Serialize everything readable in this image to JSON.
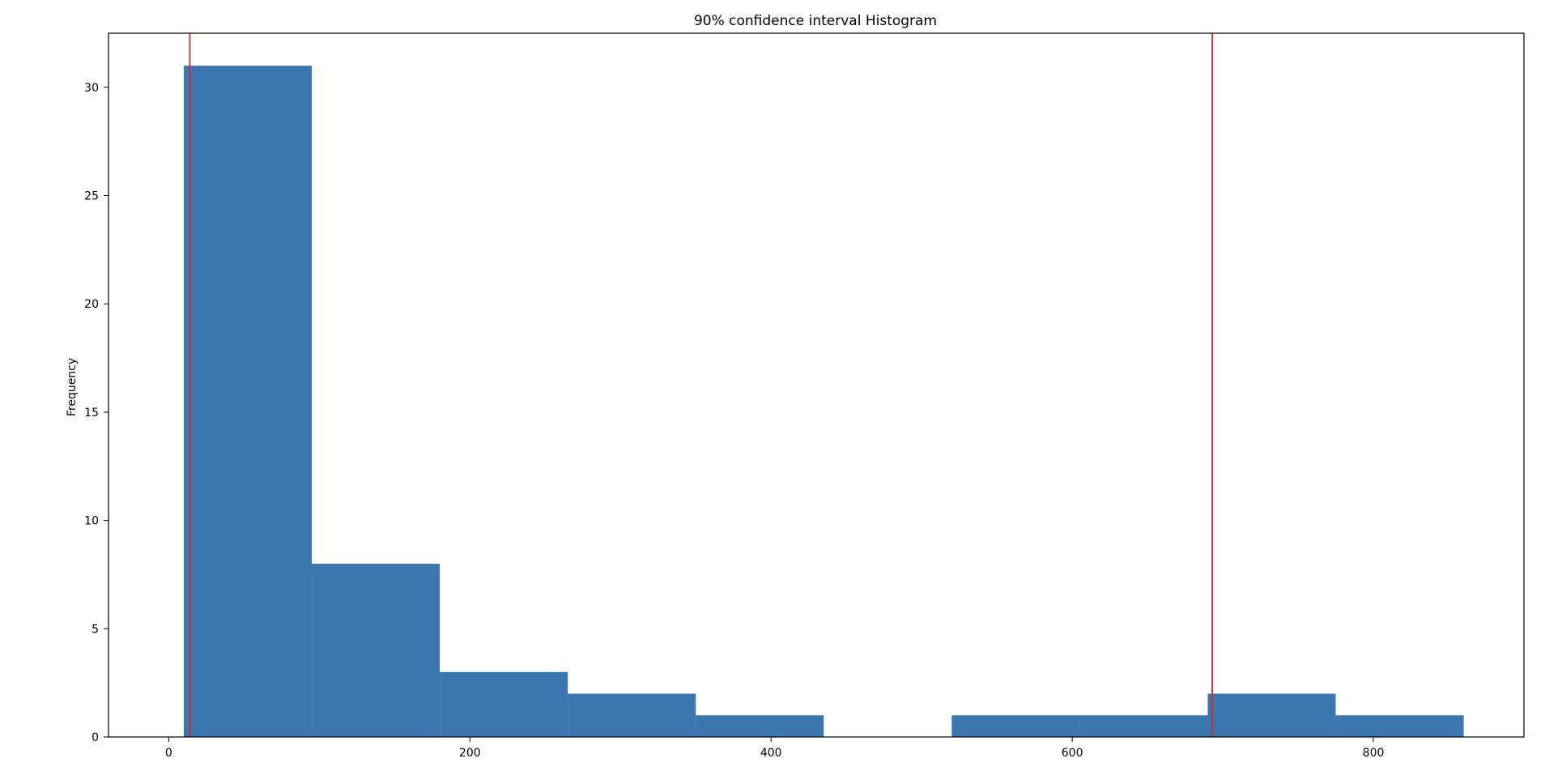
{
  "chart_data": {
    "type": "bar",
    "title": "90% confidence interval Histogram",
    "xlabel": "",
    "ylabel": "Frequency",
    "xlim": [
      -40,
      900
    ],
    "ylim": [
      0,
      32.5
    ],
    "x_ticks": [
      0,
      200,
      400,
      600,
      800
    ],
    "y_ticks": [
      0,
      5,
      10,
      15,
      20,
      25,
      30
    ],
    "bins": [
      {
        "start": 10,
        "end": 95,
        "count": 31
      },
      {
        "start": 95,
        "end": 180,
        "count": 8
      },
      {
        "start": 180,
        "end": 265,
        "count": 3
      },
      {
        "start": 265,
        "end": 350,
        "count": 2
      },
      {
        "start": 350,
        "end": 435,
        "count": 1
      },
      {
        "start": 435,
        "end": 520,
        "count": 0
      },
      {
        "start": 520,
        "end": 605,
        "count": 1
      },
      {
        "start": 605,
        "end": 690,
        "count": 1
      },
      {
        "start": 690,
        "end": 775,
        "count": 2
      },
      {
        "start": 775,
        "end": 860,
        "count": 1
      }
    ],
    "vlines": [
      14,
      693
    ],
    "bar_color": "#3b76af",
    "vline_color": "#d62728",
    "grid": false
  }
}
